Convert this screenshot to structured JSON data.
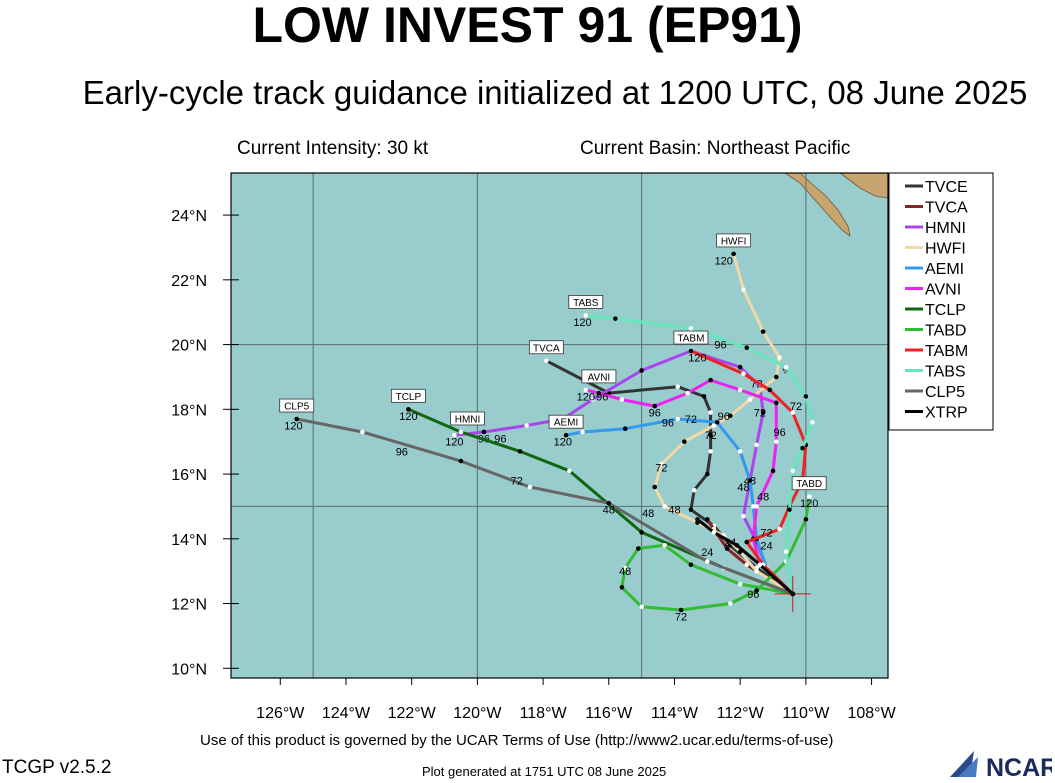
{
  "header": {
    "title": "LOW INVEST 91 (EP91)",
    "subtitle": "Early-cycle track guidance initialized at 1200 UTC, 08 June 2025",
    "current_intensity": "Current Intensity: 30 kt",
    "current_basin": "Current Basin: Northeast Pacific"
  },
  "footer": {
    "terms": "Use of this product is governed by the UCAR Terms of Use (http://www2.ucar.edu/terms-of-use)",
    "version": "TCGP v2.5.2",
    "generated": "Plot generated at 1751 UTC   08 June 2025",
    "logo_text": "NCAR"
  },
  "colors": {
    "ocean": "#99cccc",
    "land": "#c8a46e",
    "grid": "#5a6e6e"
  },
  "chart_data": {
    "type": "line",
    "title": "LOW INVEST 91 (EP91)",
    "xlim": [
      -127.5,
      -107.5
    ],
    "ylim": [
      9.7,
      25.3
    ],
    "x_ticks": [
      -126,
      -124,
      -122,
      -120,
      -118,
      -116,
      -114,
      -112,
      -110,
      -108
    ],
    "x_tick_labels": [
      "126°W",
      "124°W",
      "122°W",
      "120°W",
      "118°W",
      "116°W",
      "114°W",
      "112°W",
      "110°W",
      "108°W"
    ],
    "y_ticks": [
      10,
      12,
      14,
      16,
      18,
      20,
      22,
      24
    ],
    "y_tick_labels": [
      "10°N",
      "12°N",
      "14°N",
      "16°N",
      "18°N",
      "20°N",
      "22°N",
      "24°N"
    ],
    "grid": true,
    "legend_position": "right",
    "initial_position": {
      "lon": -110.4,
      "lat": 12.3
    },
    "series": [
      {
        "name": "TVCE",
        "color": "#333333",
        "points": [
          [
            -110.4,
            12.3
          ],
          [
            -111.5,
            13.1
          ],
          [
            -112.3,
            13.8
          ],
          [
            -112.8,
            14.4
          ],
          [
            -113.5,
            14.9
          ],
          [
            -113.4,
            15.5
          ],
          [
            -113.0,
            16.0
          ],
          [
            -112.9,
            16.7
          ],
          [
            -112.9,
            17.2
          ],
          [
            -112.9,
            17.9
          ],
          [
            -113.1,
            18.4
          ],
          [
            -113.9,
            18.7
          ],
          [
            -116.0,
            18.5
          ],
          [
            -117.9,
            19.5
          ]
        ],
        "labels": [
          [
            "72",
            -112.9,
            17.2
          ]
        ]
      },
      {
        "name": "TVCA",
        "color": "#8b2222",
        "points": [
          [
            -110.4,
            12.3
          ],
          [
            -111.8,
            13.2
          ],
          [
            -112.4,
            13.7
          ],
          [
            -112.8,
            14.3
          ],
          [
            -113.0,
            14.6
          ]
        ],
        "labels": []
      },
      {
        "name": "HMNI",
        "color": "#aa44ee",
        "points": [
          [
            -110.4,
            12.3
          ],
          [
            -111.2,
            13.1
          ],
          [
            -111.5,
            13.9
          ],
          [
            -111.9,
            14.7
          ],
          [
            -111.7,
            15.8
          ],
          [
            -111.5,
            16.9
          ],
          [
            -111.3,
            17.9
          ],
          [
            -111.4,
            18.7
          ],
          [
            -112.0,
            19.3
          ],
          [
            -113.5,
            19.8
          ],
          [
            -115.0,
            19.2
          ],
          [
            -116.5,
            18.3
          ],
          [
            -117.4,
            17.7
          ],
          [
            -118.5,
            17.5
          ],
          [
            -119.8,
            17.3
          ],
          [
            -120.7,
            17.2
          ]
        ],
        "labels": [
          [
            "48",
            -111.7,
            15.8
          ],
          [
            "72",
            -111.5,
            18.8
          ],
          [
            "96",
            -119.8,
            17.1
          ],
          [
            "120",
            -120.7,
            17.0
          ]
        ]
      },
      {
        "name": "HWFI",
        "color": "#f0d8a8",
        "points": [
          [
            -110.4,
            12.3
          ],
          [
            -111.5,
            13.0
          ],
          [
            -112.0,
            13.6
          ],
          [
            -112.5,
            14.1
          ],
          [
            -113.3,
            14.5
          ],
          [
            -114.3,
            15.0
          ],
          [
            -114.6,
            15.6
          ],
          [
            -114.4,
            16.3
          ],
          [
            -113.7,
            17.0
          ],
          [
            -112.8,
            17.5
          ],
          [
            -112.3,
            17.8
          ],
          [
            -111.7,
            18.3
          ],
          [
            -110.9,
            19.0
          ],
          [
            -110.8,
            19.6
          ],
          [
            -111.3,
            20.4
          ],
          [
            -111.9,
            21.7
          ],
          [
            -112.2,
            22.8
          ]
        ],
        "labels": [
          [
            "48",
            -114.0,
            14.9
          ],
          [
            "72",
            -114.4,
            16.2
          ],
          [
            "96",
            -112.5,
            17.8
          ],
          [
            "120",
            -112.5,
            22.6
          ]
        ]
      },
      {
        "name": "AEMI",
        "color": "#3399ee",
        "points": [
          [
            -110.4,
            12.3
          ],
          [
            -111.2,
            13.1
          ],
          [
            -111.5,
            14.0
          ],
          [
            -111.6,
            15.0
          ],
          [
            -111.7,
            15.8
          ],
          [
            -112.0,
            16.7
          ],
          [
            -112.7,
            17.6
          ],
          [
            -113.9,
            17.7
          ],
          [
            -115.5,
            17.4
          ],
          [
            -116.8,
            17.3
          ],
          [
            -117.3,
            17.2
          ]
        ],
        "labels": [
          [
            "48",
            -111.9,
            15.6
          ],
          [
            "72",
            -113.5,
            17.7
          ],
          [
            "96",
            -114.2,
            17.6
          ],
          [
            "120",
            -117.4,
            17.0
          ]
        ]
      },
      {
        "name": "AVNI",
        "color": "#ee22ee",
        "points": [
          [
            -110.4,
            12.3
          ],
          [
            -111.4,
            13.2
          ],
          [
            -111.6,
            14.0
          ],
          [
            -111.5,
            15.0
          ],
          [
            -111.0,
            16.1
          ],
          [
            -110.9,
            17.0
          ],
          [
            -110.9,
            18.2
          ],
          [
            -112.0,
            18.6
          ],
          [
            -112.9,
            18.9
          ],
          [
            -113.6,
            18.5
          ],
          [
            -114.6,
            18.1
          ],
          [
            -115.6,
            18.3
          ],
          [
            -116.3,
            18.5
          ],
          [
            -116.7,
            18.6
          ]
        ],
        "labels": [
          [
            "48",
            -111.3,
            15.3
          ],
          [
            "72",
            -111.4,
            17.9
          ],
          [
            "96",
            -114.6,
            17.9
          ],
          [
            "96",
            -116.2,
            18.4
          ],
          [
            "120",
            -116.7,
            18.4
          ]
        ]
      },
      {
        "name": "TCLP",
        "color": "#116611",
        "points": [
          [
            -110.4,
            12.3
          ],
          [
            -112.5,
            13.1
          ],
          [
            -115.0,
            14.2
          ],
          [
            -117.2,
            16.1
          ],
          [
            -118.7,
            16.7
          ],
          [
            -120.5,
            17.3
          ],
          [
            -122.1,
            18.0
          ]
        ],
        "labels": [
          [
            "48",
            -114.8,
            14.8
          ],
          [
            "96",
            -119.3,
            17.1
          ],
          [
            "120",
            -122.1,
            17.8
          ]
        ]
      },
      {
        "name": "TABD",
        "color": "#33bb33",
        "points": [
          [
            -110.4,
            12.3
          ],
          [
            -112.0,
            12.6
          ],
          [
            -113.5,
            13.2
          ],
          [
            -114.3,
            13.8
          ],
          [
            -115.1,
            13.7
          ],
          [
            -115.5,
            13.1
          ],
          [
            -115.6,
            12.5
          ],
          [
            -115.0,
            11.9
          ],
          [
            -113.8,
            11.8
          ],
          [
            -112.3,
            12.0
          ],
          [
            -111.5,
            12.4
          ],
          [
            -110.6,
            13.3
          ],
          [
            -110.0,
            14.6
          ],
          [
            -109.9,
            15.3
          ]
        ],
        "labels": [
          [
            "24",
            -113.0,
            13.6
          ],
          [
            "48",
            -115.5,
            13.0
          ],
          [
            "72",
            -113.8,
            11.6
          ],
          [
            "96",
            -111.6,
            12.3
          ],
          [
            "120",
            -109.9,
            15.1
          ]
        ]
      },
      {
        "name": "TABM",
        "color": "#ee2222",
        "points": [
          [
            -110.4,
            12.3
          ],
          [
            -111.3,
            13.2
          ],
          [
            -111.8,
            13.9
          ],
          [
            -110.8,
            14.3
          ],
          [
            -110.5,
            15.0
          ],
          [
            -110.1,
            15.8
          ],
          [
            -110.0,
            16.9
          ],
          [
            -110.4,
            17.9
          ],
          [
            -111.1,
            18.6
          ],
          [
            -111.9,
            19.1
          ],
          [
            -113.5,
            19.8
          ]
        ],
        "labels": [
          [
            "24",
            -111.2,
            13.8
          ],
          [
            "72",
            -111.2,
            14.2
          ],
          [
            "72",
            -110.3,
            18.1
          ],
          [
            "96",
            -110.8,
            17.3
          ],
          [
            "120",
            -113.3,
            19.6
          ]
        ]
      },
      {
        "name": "TABS",
        "color": "#66e6bb",
        "points": [
          [
            -110.4,
            12.3
          ],
          [
            -110.6,
            13.6
          ],
          [
            -110.5,
            14.9
          ],
          [
            -110.4,
            16.1
          ],
          [
            -110.1,
            16.8
          ],
          [
            -109.8,
            17.6
          ],
          [
            -110.0,
            18.4
          ],
          [
            -110.6,
            19.3
          ],
          [
            -111.8,
            19.9
          ],
          [
            -113.5,
            20.5
          ],
          [
            -115.8,
            20.8
          ],
          [
            -116.7,
            20.9
          ]
        ],
        "labels": [
          [
            "96",
            -112.6,
            20.0
          ],
          [
            "120",
            -116.8,
            20.7
          ]
        ]
      },
      {
        "name": "CLP5",
        "color": "#666666",
        "points": [
          [
            -110.4,
            12.3
          ],
          [
            -113.0,
            13.3
          ],
          [
            -116.0,
            15.1
          ],
          [
            -118.4,
            15.6
          ],
          [
            -120.5,
            16.4
          ],
          [
            -123.5,
            17.3
          ],
          [
            -125.5,
            17.7
          ]
        ],
        "labels": [
          [
            "48",
            -116.0,
            14.9
          ],
          [
            "72",
            -118.8,
            15.8
          ],
          [
            "96",
            -122.3,
            16.7
          ],
          [
            "120",
            -125.6,
            17.5
          ]
        ]
      },
      {
        "name": "XTRP",
        "color": "#000000",
        "points": [
          [
            -110.4,
            12.3
          ],
          [
            -111.4,
            13.2
          ],
          [
            -112.1,
            13.8
          ],
          [
            -112.8,
            14.2
          ],
          [
            -113.3,
            14.6
          ]
        ],
        "labels": [
          [
            "24",
            -112.3,
            13.9
          ]
        ]
      }
    ],
    "storm_id_labels": [
      {
        "text": "HWFI",
        "lon": -112.2,
        "lat": 22.8
      },
      {
        "text": "TABS",
        "lon": -116.7,
        "lat": 20.9
      },
      {
        "text": "TVCA",
        "lon": -117.9,
        "lat": 19.5
      },
      {
        "text": "TABM",
        "lon": -113.5,
        "lat": 19.8
      },
      {
        "text": "AVNI",
        "lon": -116.3,
        "lat": 18.6
      },
      {
        "text": "TCLP",
        "lon": -122.1,
        "lat": 18.0
      },
      {
        "text": "CLP5",
        "lon": -125.5,
        "lat": 17.7
      },
      {
        "text": "HMNI",
        "lon": -120.3,
        "lat": 17.3
      },
      {
        "text": "AEMI",
        "lon": -117.3,
        "lat": 17.2
      },
      {
        "text": "TABD",
        "lon": -109.9,
        "lat": 15.3
      }
    ]
  }
}
